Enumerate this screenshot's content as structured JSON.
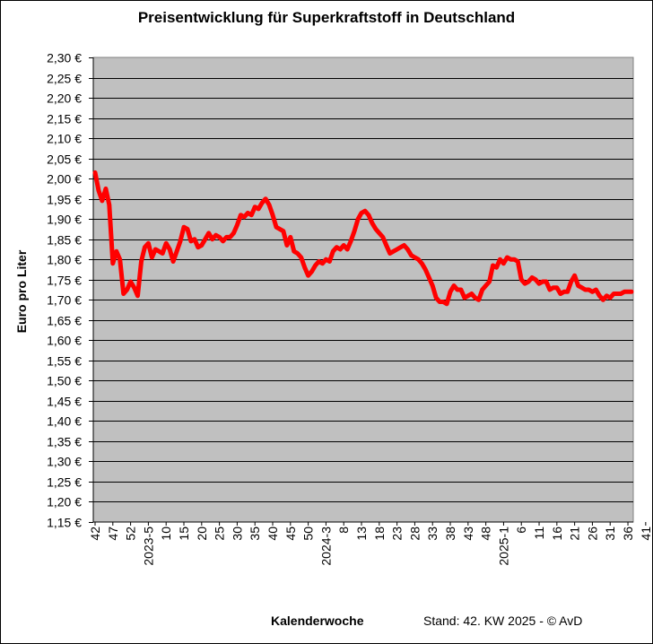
{
  "chart_data": {
    "type": "line",
    "title": "Preisentwicklung für Superkraftstoff in Deutschland",
    "ylabel": "Euro pro Liter",
    "xlabel": "Kalenderwoche",
    "footnote": "Stand: 42. KW 2025 - © AvD",
    "ylim": [
      1.15,
      2.3
    ],
    "ystep": 0.05,
    "grid": true,
    "legend": "none",
    "colors": {
      "line": "#ff0000",
      "plot_bg": "#c0c0c0",
      "grid": "#000000"
    },
    "x_ticks": [
      "42",
      "47",
      "52",
      "2023-5",
      "10",
      "15",
      "20",
      "25",
      "30",
      "35",
      "40",
      "45",
      "50",
      "2024-3",
      "8",
      "13",
      "18",
      "23",
      "28",
      "33",
      "38",
      "43",
      "48",
      "2025-1",
      "6",
      "11",
      "16",
      "21",
      "26",
      "31",
      "36",
      "41"
    ],
    "x_start_week": 42,
    "series": [
      {
        "values": [
          2.015,
          1.97,
          1.945,
          1.975,
          1.935,
          1.79,
          1.82,
          1.8,
          1.715,
          1.725,
          1.745,
          1.73,
          1.71,
          1.795,
          1.83,
          1.84,
          1.805,
          1.825,
          1.82,
          1.815,
          1.84,
          1.825,
          1.795,
          1.82,
          1.845,
          1.88,
          1.875,
          1.845,
          1.85,
          1.83,
          1.835,
          1.85,
          1.865,
          1.85,
          1.86,
          1.855,
          1.845,
          1.855,
          1.855,
          1.865,
          1.885,
          1.91,
          1.905,
          1.915,
          1.91,
          1.93,
          1.925,
          1.94,
          1.95,
          1.935,
          1.91,
          1.88,
          1.875,
          1.87,
          1.835,
          1.855,
          1.82,
          1.815,
          1.805,
          1.78,
          1.76,
          1.77,
          1.785,
          1.795,
          1.79,
          1.8,
          1.795,
          1.82,
          1.83,
          1.825,
          1.835,
          1.825,
          1.845,
          1.87,
          1.9,
          1.915,
          1.92,
          1.91,
          1.89,
          1.875,
          1.865,
          1.855,
          1.835,
          1.815,
          1.82,
          1.825,
          1.83,
          1.835,
          1.825,
          1.81,
          1.805,
          1.8,
          1.79,
          1.775,
          1.755,
          1.735,
          1.705,
          1.695,
          1.695,
          1.69,
          1.72,
          1.735,
          1.725,
          1.725,
          1.705,
          1.71,
          1.715,
          1.705,
          1.7,
          1.725,
          1.735,
          1.745,
          1.785,
          1.78,
          1.8,
          1.79,
          1.805,
          1.8,
          1.8,
          1.795,
          1.75,
          1.74,
          1.745,
          1.755,
          1.75,
          1.74,
          1.745,
          1.745,
          1.725,
          1.73,
          1.73,
          1.715,
          1.72,
          1.72,
          1.745,
          1.76,
          1.735,
          1.73,
          1.725,
          1.725,
          1.72,
          1.725,
          1.71,
          1.7,
          1.71,
          1.705,
          1.715,
          1.715,
          1.715,
          1.72,
          1.72,
          1.72
        ]
      }
    ]
  }
}
